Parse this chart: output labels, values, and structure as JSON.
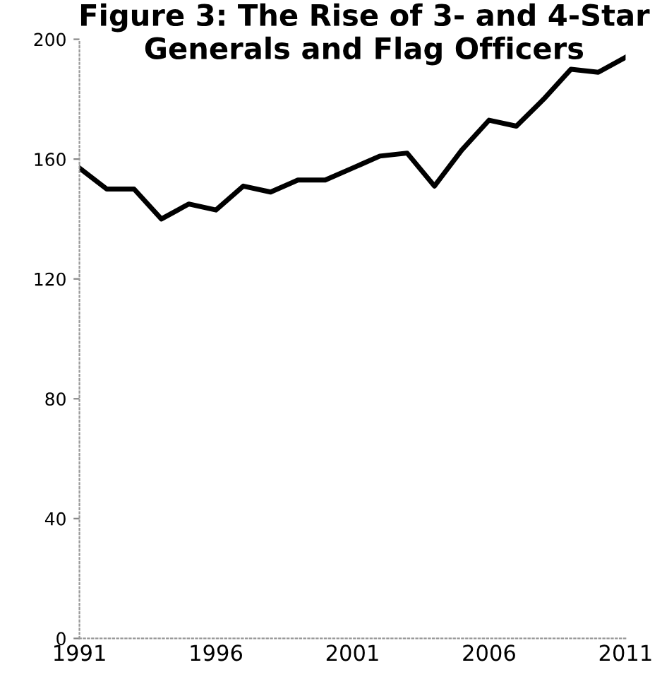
{
  "chart_data": {
    "type": "line",
    "title": "Figure 3: The Rise of 3- and 4-Star Generals and Flag Officers",
    "x": [
      1991,
      1992,
      1993,
      1994,
      1995,
      1996,
      1997,
      1998,
      1999,
      2000,
      2001,
      2002,
      2003,
      2004,
      2005,
      2006,
      2007,
      2008,
      2009,
      2010,
      2011
    ],
    "series": [
      {
        "color": "#000000",
        "values": [
          157,
          150,
          150,
          140,
          145,
          143,
          151,
          149,
          153,
          153,
          157,
          161,
          162,
          151,
          163,
          173,
          171,
          180,
          190,
          189,
          194
        ]
      }
    ],
    "xlim": [
      1991,
      2011
    ],
    "xticks": [
      1991,
      1996,
      2001,
      2006,
      2011
    ],
    "ylim": [
      0,
      200
    ],
    "yticks": [
      0,
      40,
      80,
      120,
      160,
      200
    ],
    "grid": false,
    "legend": false
  }
}
